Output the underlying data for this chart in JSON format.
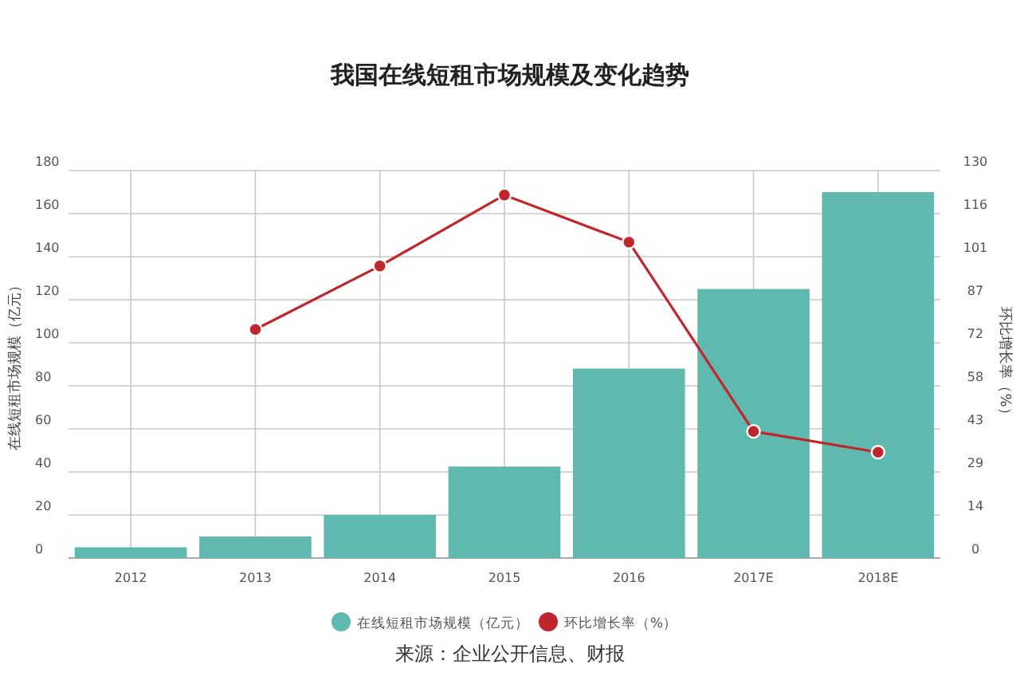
{
  "chart_data": {
    "type": "bar",
    "title": "我国在线短租市场规模及变化趋势",
    "categories": [
      "2012",
      "2013",
      "2014",
      "2015",
      "2016",
      "2017E",
      "2018E"
    ],
    "series": [
      {
        "name": "在线短租市场规模（亿元）",
        "color": "#5fb9ae",
        "values": [
          5,
          10,
          20,
          42.5,
          88,
          125,
          170
        ]
      },
      {
        "name": "环比增长率（%）",
        "type": "line",
        "axis": "y2",
        "color": "#c0272d",
        "values": [
          null,
          76.7,
          98,
          121.8,
          106,
          42.5,
          35.5
        ]
      }
    ],
    "ylabel": "在线短租市场规模（亿元）",
    "y2label": "环比增长率（%）",
    "ylim": [
      0,
      180
    ],
    "yticks": [
      0,
      20,
      40,
      60,
      80,
      100,
      120,
      140,
      160,
      180
    ],
    "y2lim": [
      0,
      130
    ],
    "y2ticks": [
      0,
      {
        "value": 14.44,
        "label": "14"
      },
      {
        "value": 28.89,
        "label": "29"
      },
      {
        "value": 43.33,
        "label": "43"
      },
      {
        "value": 57.78,
        "label": "58"
      },
      {
        "value": 72.22,
        "label": "72"
      },
      {
        "value": 86.67,
        "label": "87"
      },
      {
        "value": 101.11,
        "label": "101"
      },
      {
        "value": 115.56,
        "label": "116"
      },
      130
    ],
    "grid": true,
    "legend": "bottom",
    "marker": "circle",
    "annotations": [
      "来源：企业公开信息、财报"
    ]
  }
}
